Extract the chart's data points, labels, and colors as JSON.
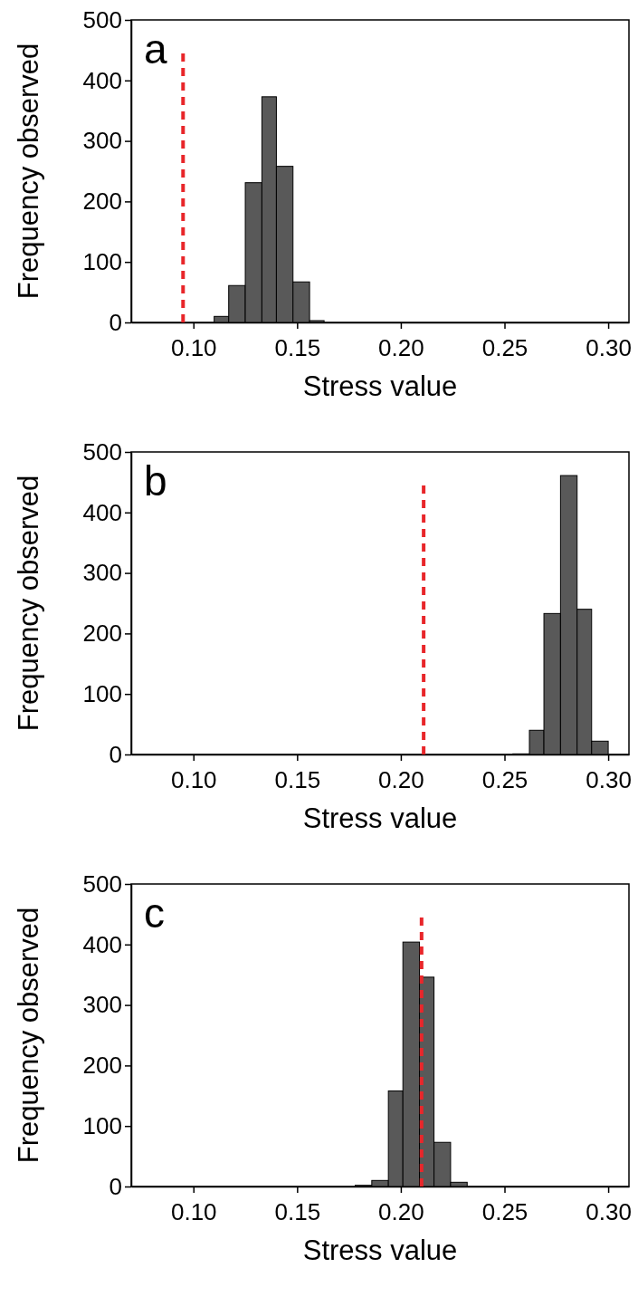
{
  "chart_data": [
    {
      "type": "histogram",
      "title": "a",
      "xlabel": "Stress value",
      "ylabel": "Frequency observed",
      "bins": [
        0.11,
        0.117,
        0.125,
        0.133,
        0.14,
        0.148,
        0.156,
        0.163
      ],
      "values": [
        10,
        61,
        231,
        373,
        258,
        67,
        3
      ],
      "color": "#595959",
      "xlim": [
        0.07,
        0.31
      ],
      "xticks": [
        {
          "value": 0.1,
          "label": "0.10"
        },
        {
          "value": 0.15,
          "label": "0.15"
        },
        {
          "value": 0.2,
          "label": "0.20"
        },
        {
          "value": 0.25,
          "label": "0.25"
        },
        {
          "value": 0.3,
          "label": "0.30"
        }
      ],
      "ylim": [
        0,
        500
      ],
      "yticks": [
        0,
        100,
        200,
        300,
        400,
        500
      ],
      "grid": false,
      "ref_lines": [
        {
          "axis": "x",
          "value": 0.095,
          "color": "#e8262a",
          "line_style": "dashed"
        }
      ]
    },
    {
      "type": "histogram",
      "title": "b",
      "xlabel": "Stress value",
      "ylabel": "Frequency observed",
      "bins": [
        0.254,
        0.262,
        0.269,
        0.277,
        0.285,
        0.292,
        0.3
      ],
      "values": [
        1,
        40,
        233,
        461,
        240,
        22
      ],
      "color": "#595959",
      "xlim": [
        0.07,
        0.31
      ],
      "xticks": [
        {
          "value": 0.1,
          "label": "0.10"
        },
        {
          "value": 0.15,
          "label": "0.15"
        },
        {
          "value": 0.2,
          "label": "0.20"
        },
        {
          "value": 0.25,
          "label": "0.25"
        },
        {
          "value": 0.3,
          "label": "0.30"
        }
      ],
      "ylim": [
        0,
        500
      ],
      "yticks": [
        0,
        100,
        200,
        300,
        400,
        500
      ],
      "grid": false,
      "ref_lines": [
        {
          "axis": "x",
          "value": 0.211,
          "color": "#e8262a",
          "line_style": "dashed"
        }
      ]
    },
    {
      "type": "histogram",
      "title": "c",
      "xlabel": "Stress value",
      "ylabel": "Frequency observed",
      "bins": [
        0.178,
        0.186,
        0.194,
        0.201,
        0.209,
        0.216,
        0.224,
        0.232
      ],
      "values": [
        2,
        10,
        158,
        404,
        346,
        73,
        7
      ],
      "color": "#595959",
      "xlim": [
        0.07,
        0.31
      ],
      "xticks": [
        {
          "value": 0.1,
          "label": "0.10"
        },
        {
          "value": 0.15,
          "label": "0.15"
        },
        {
          "value": 0.2,
          "label": "0.20"
        },
        {
          "value": 0.25,
          "label": "0.25"
        },
        {
          "value": 0.3,
          "label": "0.30"
        }
      ],
      "ylim": [
        0,
        500
      ],
      "yticks": [
        0,
        100,
        200,
        300,
        400,
        500
      ],
      "grid": false,
      "ref_lines": [
        {
          "axis": "x",
          "value": 0.21,
          "color": "#e8262a",
          "line_style": "dashed"
        }
      ]
    }
  ]
}
